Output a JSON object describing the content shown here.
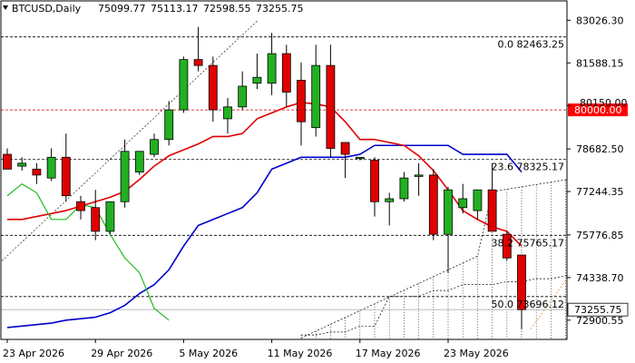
{
  "header": {
    "symbol": "BTCUSD,Daily",
    "open": "75099.77",
    "high": "75113.17",
    "low": "72598.55",
    "close": "73255.75"
  },
  "colors": {
    "background": "#ffffff",
    "frame": "#000000",
    "bull_candle": "#22b022",
    "bear_candle": "#e00000",
    "fast_ma": "#e00000",
    "slow_ma": "#0000cc",
    "lagging_line": "#22bb22",
    "fib_line": "#000000",
    "level_80000": "#cc0000",
    "current_price_tag": "#ffffff",
    "level_tag_80000": "#ff0000"
  },
  "chart_data": {
    "type": "candlestick",
    "title": "BTCUSD,Daily",
    "ylim": [
      72250,
      83680
    ],
    "y_ticks": [
      "83026.30",
      "81588.15",
      "80150.00",
      "78682.50",
      "77244.35",
      "75776.85",
      "74338.70",
      "72900.55"
    ],
    "x_tick_labels": [
      {
        "index": 0,
        "label": "23 Apr 2026"
      },
      {
        "index": 6,
        "label": "29 Apr 2026"
      },
      {
        "index": 12,
        "label": "5 May 2026"
      },
      {
        "index": 18,
        "label": "11 May 2026"
      },
      {
        "index": 24,
        "label": "17 May 2026"
      },
      {
        "index": 30,
        "label": "23 May 2026"
      }
    ],
    "candles": [
      {
        "o": 78500,
        "h": 78700,
        "l": 78000,
        "c": 78000
      },
      {
        "o": 78100,
        "h": 78400,
        "l": 77950,
        "c": 78200
      },
      {
        "o": 78000,
        "h": 78200,
        "l": 77500,
        "c": 77800
      },
      {
        "o": 77700,
        "h": 78700,
        "l": 77600,
        "c": 78400
      },
      {
        "o": 78400,
        "h": 79200,
        "l": 76900,
        "c": 77100
      },
      {
        "o": 76900,
        "h": 77100,
        "l": 76300,
        "c": 76600
      },
      {
        "o": 76700,
        "h": 77300,
        "l": 75600,
        "c": 75900
      },
      {
        "o": 75900,
        "h": 76900,
        "l": 75800,
        "c": 76900
      },
      {
        "o": 76900,
        "h": 79000,
        "l": 76700,
        "c": 78600
      },
      {
        "o": 77900,
        "h": 78600,
        "l": 77800,
        "c": 78600
      },
      {
        "o": 78500,
        "h": 79200,
        "l": 78400,
        "c": 79000
      },
      {
        "o": 79000,
        "h": 80300,
        "l": 78800,
        "c": 80000
      },
      {
        "o": 80000,
        "h": 81800,
        "l": 79900,
        "c": 81700
      },
      {
        "o": 81700,
        "h": 82800,
        "l": 81300,
        "c": 81500
      },
      {
        "o": 81500,
        "h": 81800,
        "l": 79600,
        "c": 80000
      },
      {
        "o": 79700,
        "h": 80400,
        "l": 79200,
        "c": 80100
      },
      {
        "o": 80100,
        "h": 81300,
        "l": 80000,
        "c": 80800
      },
      {
        "o": 80900,
        "h": 81900,
        "l": 80700,
        "c": 81100
      },
      {
        "o": 80900,
        "h": 82600,
        "l": 80500,
        "c": 81900
      },
      {
        "o": 81900,
        "h": 82200,
        "l": 80100,
        "c": 80600
      },
      {
        "o": 81000,
        "h": 81600,
        "l": 78800,
        "c": 79600
      },
      {
        "o": 79400,
        "h": 82200,
        "l": 79100,
        "c": 81500
      },
      {
        "o": 81500,
        "h": 82200,
        "l": 78400,
        "c": 78700
      },
      {
        "o": 78900,
        "h": 78900,
        "l": 77700,
        "c": 78500
      },
      {
        "o": 78400,
        "h": 78400,
        "l": 78300,
        "c": 78400
      },
      {
        "o": 78300,
        "h": 78400,
        "l": 76400,
        "c": 76900
      },
      {
        "o": 76900,
        "h": 77200,
        "l": 76100,
        "c": 77000
      },
      {
        "o": 77000,
        "h": 77900,
        "l": 76900,
        "c": 77700
      },
      {
        "o": 77800,
        "h": 78200,
        "l": 77100,
        "c": 77800
      },
      {
        "o": 77800,
        "h": 78000,
        "l": 75600,
        "c": 75800
      },
      {
        "o": 75800,
        "h": 77400,
        "l": 74500,
        "c": 77300
      },
      {
        "o": 76700,
        "h": 77500,
        "l": 76500,
        "c": 77000
      },
      {
        "o": 76600,
        "h": 77300,
        "l": 76300,
        "c": 77300
      },
      {
        "o": 77300,
        "h": 78200,
        "l": 75900,
        "c": 75900
      },
      {
        "o": 75800,
        "h": 75900,
        "l": 74900,
        "c": 75000
      },
      {
        "o": 75099.77,
        "h": 75113.17,
        "l": 72598.55,
        "c": 73255.75
      }
    ],
    "series": [
      {
        "role": "fast-ma",
        "values": [
          76300,
          76300,
          76400,
          76500,
          76600,
          76750,
          76900,
          77050,
          77250,
          77650,
          78100,
          78450,
          78650,
          78850,
          79100,
          79100,
          79200,
          79700,
          79900,
          80100,
          80250,
          80200,
          80100,
          79600,
          79000,
          79000,
          78900,
          78800,
          78450,
          77950,
          77300,
          76600,
          76300,
          76050,
          75900,
          75400
        ]
      },
      {
        "role": "slow-ma",
        "values": [
          72650,
          72700,
          72750,
          72800,
          72900,
          72950,
          73000,
          73150,
          73400,
          73800,
          74100,
          74600,
          75400,
          76100,
          76300,
          76500,
          76700,
          77200,
          78000,
          78200,
          78400,
          78400,
          78400,
          78400,
          78500,
          78800,
          78800,
          78800,
          78800,
          78800,
          78800,
          78500,
          78500,
          78500,
          78500,
          77900
        ]
      },
      {
        "role": "lagging-line",
        "values": [
          77100,
          77500,
          77200,
          76300,
          76300,
          76800,
          76700,
          75800,
          75000,
          74500,
          73300,
          72900
        ]
      }
    ],
    "levels": [
      {
        "id": "fib-0",
        "value": 82463.25,
        "label": "0.0 82463.25"
      },
      {
        "id": "level-80000",
        "value": 80000,
        "label": "80000.00"
      },
      {
        "id": "fib-236",
        "value": 78325.17,
        "label": "23.6 78325.17"
      },
      {
        "id": "fib-382",
        "value": 75765.17,
        "label": "38.2 75765.17"
      },
      {
        "id": "fib-50",
        "value": 73696.12,
        "label": "50.0 73696.12"
      }
    ],
    "current_price": "73255.75"
  }
}
